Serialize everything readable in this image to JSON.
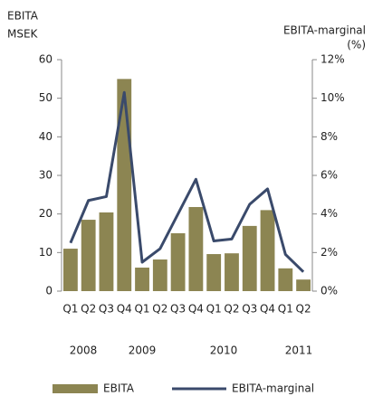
{
  "chart_data": {
    "type": "bar_line",
    "ylabel": [
      "EBITA",
      "MSEK"
    ],
    "y2label": [
      "EBITA-marginal",
      "(%)"
    ],
    "categories": [
      "Q1",
      "Q2",
      "Q3",
      "Q4",
      "Q1",
      "Q2",
      "Q3",
      "Q4",
      "Q1",
      "Q2",
      "Q3",
      "Q4",
      "Q1",
      "Q2"
    ],
    "years": [
      "2008",
      "2009",
      "2010",
      "2011"
    ],
    "series": [
      {
        "name": "EBITA",
        "type": "bar",
        "axis": "y",
        "color": "#8c8552",
        "values": [
          11,
          18.5,
          20.4,
          55,
          6.1,
          8.2,
          15,
          21.8,
          9.6,
          9.8,
          16.9,
          21,
          5.9,
          3
        ]
      },
      {
        "name": "EBITA-marginal",
        "type": "line",
        "axis": "y2",
        "color": "#3a4a6b",
        "values": [
          2.5,
          4.7,
          4.9,
          10.3,
          1.5,
          2.2,
          4.0,
          5.8,
          2.6,
          2.7,
          4.5,
          5.3,
          1.9,
          1.0
        ]
      }
    ],
    "ylim": [
      0,
      60
    ],
    "yticks": [
      0,
      10,
      20,
      30,
      40,
      50,
      60
    ],
    "y2lim": [
      0,
      12
    ],
    "y2ticks": [
      {
        "value": 0,
        "label": "0%"
      },
      {
        "value": 2,
        "label": "2%"
      },
      {
        "value": 4,
        "label": "4%"
      },
      {
        "value": 6,
        "label": "6%"
      },
      {
        "value": 8,
        "label": "8%"
      },
      {
        "value": 10,
        "label": "10%"
      },
      {
        "value": 12,
        "label": "12%"
      }
    ],
    "grid": false
  }
}
